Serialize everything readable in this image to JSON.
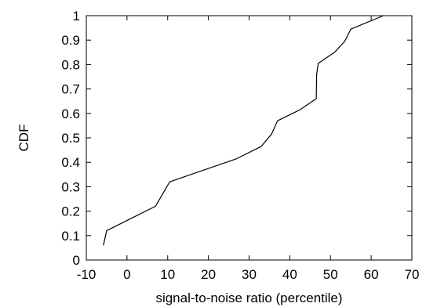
{
  "chart_data": {
    "type": "line",
    "title": "",
    "xlabel": "signal-to-noise ratio (percentile)",
    "ylabel": "CDF",
    "xlim": [
      -10,
      70
    ],
    "ylim": [
      0,
      1
    ],
    "xticks": [
      -10,
      0,
      10,
      20,
      30,
      40,
      50,
      60,
      70
    ],
    "yticks": [
      0,
      0.1,
      0.2,
      0.3,
      0.4,
      0.5,
      0.6,
      0.7,
      0.8,
      0.9,
      1
    ],
    "grid": false,
    "legend": "none",
    "series": [
      {
        "color": "#000000",
        "x": [
          -5.8,
          -5.0,
          1.0,
          7.0,
          10.5,
          27.0,
          33.0,
          35.5,
          37.0,
          42.5,
          46.5,
          46.6,
          47.0,
          51.0,
          53.5,
          55.0,
          63.0
        ],
        "y": [
          0.06,
          0.12,
          0.17,
          0.22,
          0.32,
          0.415,
          0.465,
          0.515,
          0.57,
          0.615,
          0.66,
          0.76,
          0.805,
          0.85,
          0.895,
          0.945,
          1.0
        ]
      }
    ]
  }
}
